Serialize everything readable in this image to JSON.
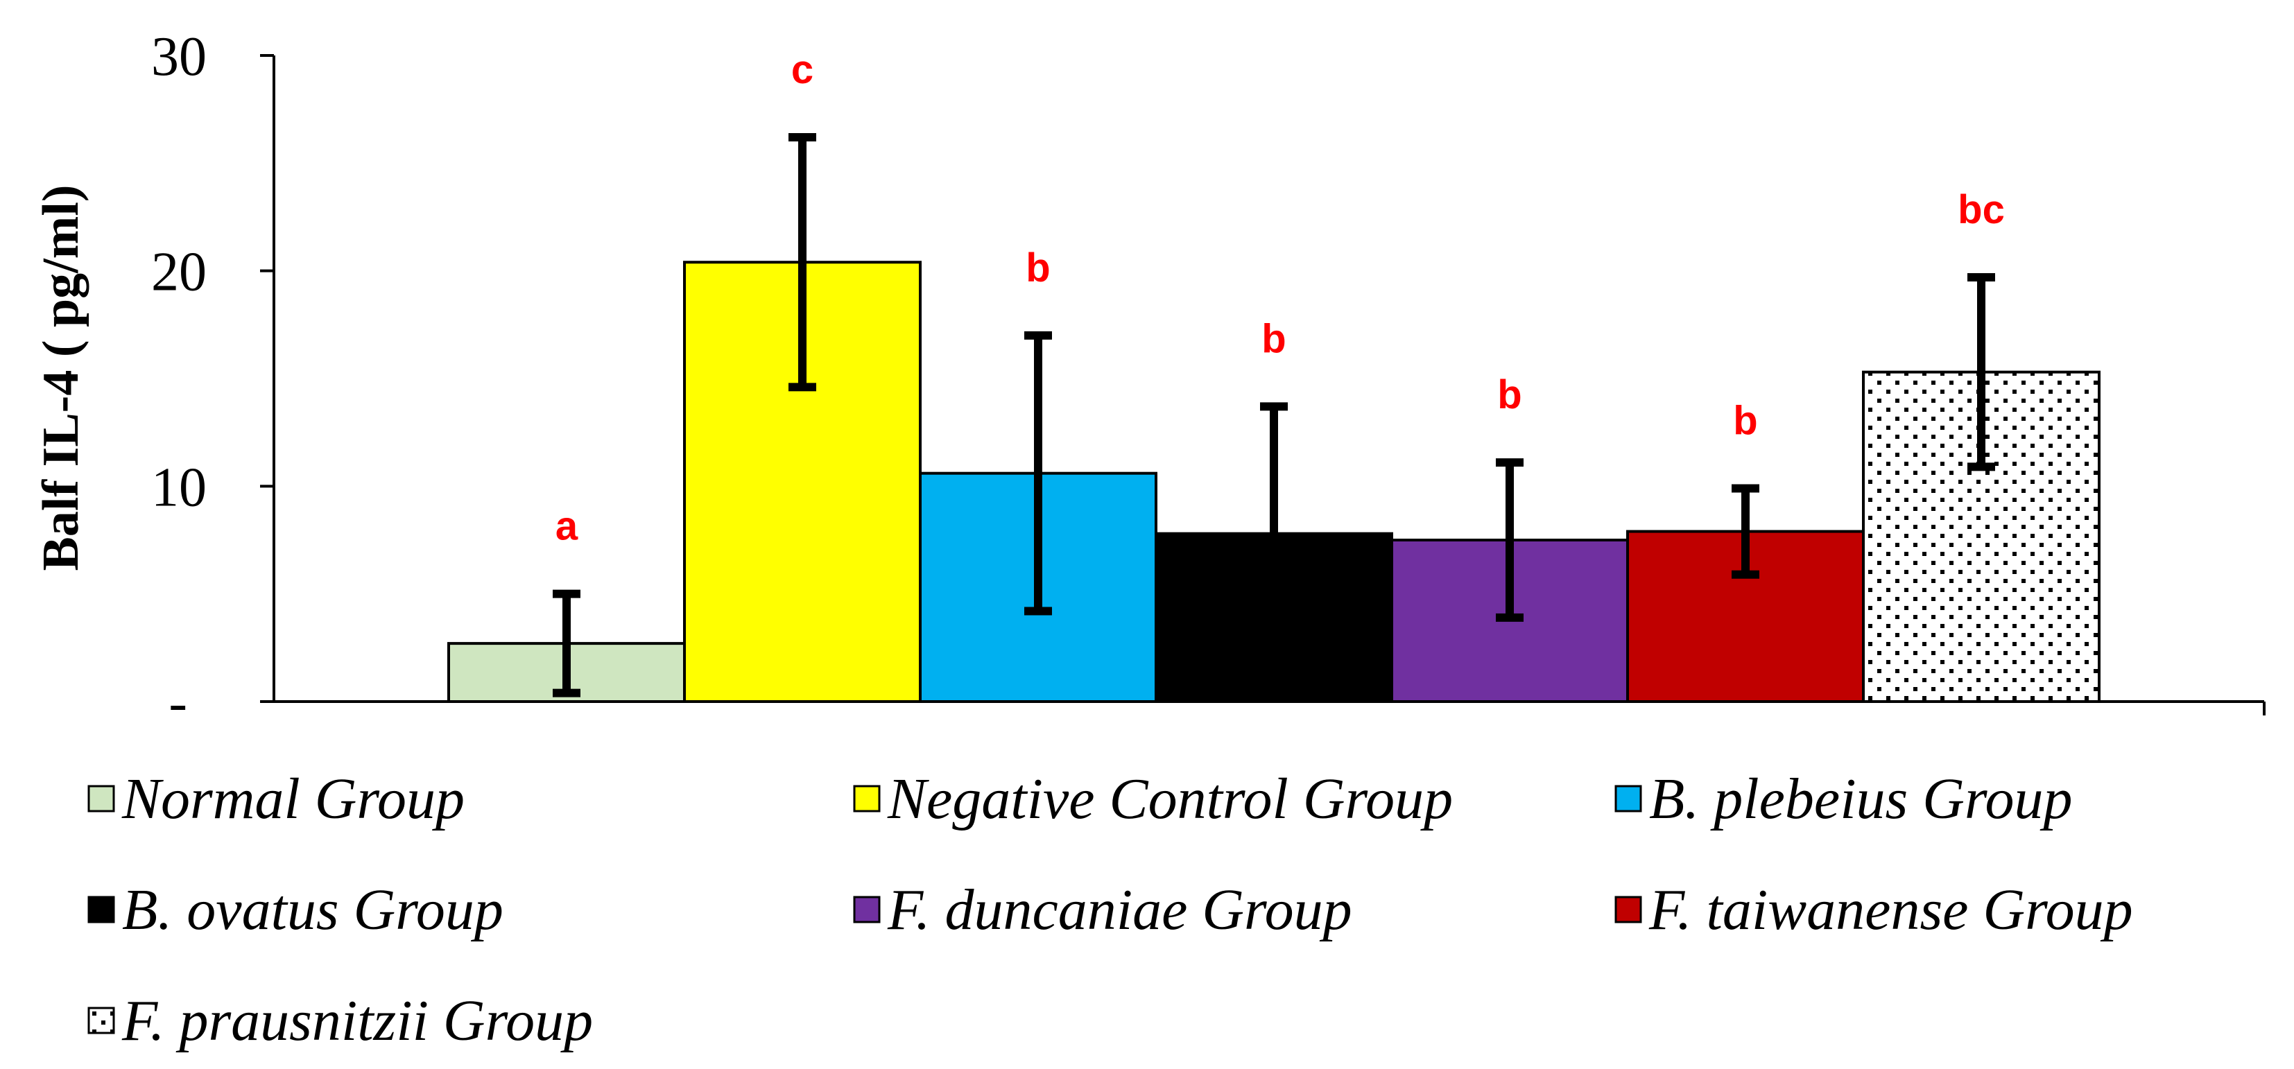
{
  "chart_data": {
    "type": "bar",
    "title": "",
    "xlabel": "",
    "ylabel": "Balf IL-4 ( pg/ml)",
    "ylim": [
      0,
      30
    ],
    "yticks": [
      {
        "value": 0,
        "label": "-"
      },
      {
        "value": 10,
        "label": "10"
      },
      {
        "value": 20,
        "label": "20"
      },
      {
        "value": 30,
        "label": "30"
      }
    ],
    "grid": false,
    "legend_position": "bottom",
    "series": [
      {
        "name": "Normal Group",
        "value": 2.7,
        "error": 2.3,
        "sig": "a",
        "color": "#cfe6c0",
        "pattern": "none"
      },
      {
        "name": "Negative Control Group",
        "value": 20.4,
        "error": 5.8,
        "sig": "c",
        "color": "#ffff00",
        "pattern": "none"
      },
      {
        "name": "B. plebeius Group",
        "value": 10.6,
        "error": 6.4,
        "sig": "b",
        "color": "#00b0f0",
        "pattern": "none"
      },
      {
        "name": "B. ovatus Group",
        "value": 7.8,
        "error": 5.9,
        "sig": "b",
        "color": "#000000",
        "pattern": "none"
      },
      {
        "name": "F. duncaniae Group",
        "value": 7.5,
        "error": 3.6,
        "sig": "b",
        "color": "#7030a0",
        "pattern": "none"
      },
      {
        "name": "F. taiwanense Group",
        "value": 7.9,
        "error": 2.0,
        "sig": "b",
        "color": "#c00000",
        "pattern": "none"
      },
      {
        "name": "F. prausnitzii Group",
        "value": 15.3,
        "error": 4.4,
        "sig": "bc",
        "color": "#ffffff",
        "pattern": "dots"
      }
    ]
  }
}
